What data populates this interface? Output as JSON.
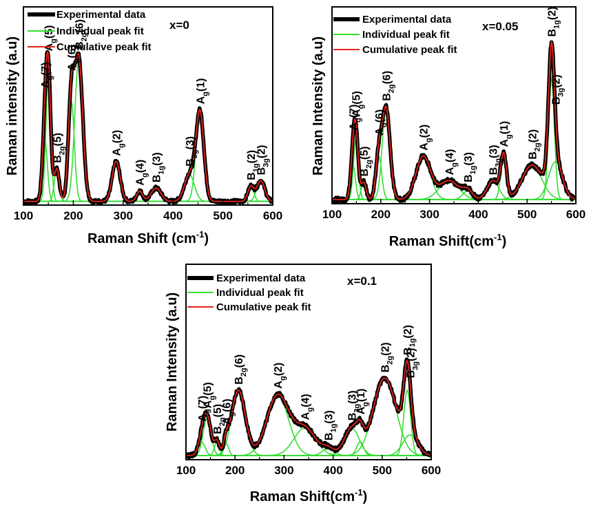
{
  "colors": {
    "experimental": "#000000",
    "individual": "#33dd33",
    "cumulative": "#e8221a"
  },
  "chart_data": [
    {
      "type": "line",
      "title": "x=0",
      "xlabel": "Raman Shift (cm",
      "xlabel_sup": "-1",
      "xlabel_end": ")",
      "ylabel": "Raman intensity (a.u)",
      "xlim": [
        100,
        600
      ],
      "xticks": [
        100,
        200,
        300,
        400,
        500,
        600
      ],
      "legend": [
        "Experimental data",
        "Individual peak fit",
        "Cumulative peak fit"
      ],
      "legend_position": "top-left",
      "baseline": 0.02,
      "peaks": [
        {
          "label": "Ag(7)",
          "center": 143,
          "height": 0.42,
          "width": 5
        },
        {
          "label": "Ag(5)",
          "center": 150,
          "height": 0.82,
          "width": 5
        },
        {
          "label": "B2g(5)",
          "center": 167,
          "height": 0.22,
          "width": 5
        },
        {
          "label": "Ag(6)",
          "center": 196,
          "height": 0.68,
          "width": 6
        },
        {
          "label": "B2g(6)",
          "center": 211,
          "height": 0.96,
          "width": 8
        },
        {
          "label": "Ag(2)",
          "center": 286,
          "height": 0.27,
          "width": 8
        },
        {
          "label": "Ag(4)",
          "center": 333,
          "height": 0.07,
          "width": 6
        },
        {
          "label": "B1g(3)",
          "center": 366,
          "height": 0.09,
          "width": 10
        },
        {
          "label": "B3g(3)",
          "center": 433,
          "height": 0.18,
          "width": 10
        },
        {
          "label": "Ag(1)",
          "center": 454,
          "height": 0.6,
          "width": 8
        },
        {
          "label": "B1g(2)",
          "center": 556,
          "height": 0.1,
          "width": 6
        },
        {
          "label": "B3g(2)",
          "center": 576,
          "height": 0.14,
          "width": 8
        }
      ]
    },
    {
      "type": "line",
      "title": "x=0.05",
      "xlabel": "Raman Shift(cm",
      "xlabel_sup": "-1",
      "xlabel_end": ")",
      "ylabel": "Raman Intensity (a.u)",
      "xlim": [
        100,
        600
      ],
      "xticks": [
        100,
        200,
        300,
        400,
        500,
        600
      ],
      "legend": [
        "Experimental data",
        "Individual peak fit",
        "Cumulative peak fit"
      ],
      "legend_position": "top-left",
      "baseline": 0.02,
      "peaks": [
        {
          "label": "Ag(7)",
          "center": 143,
          "height": 0.2,
          "width": 5
        },
        {
          "label": "Ag(5)",
          "center": 149,
          "height": 0.35,
          "width": 5
        },
        {
          "label": "B2g(5)",
          "center": 165,
          "height": 0.1,
          "width": 5
        },
        {
          "label": "Ag(6)",
          "center": 196,
          "height": 0.25,
          "width": 6
        },
        {
          "label": "B2g(6)",
          "center": 211,
          "height": 0.53,
          "width": 8
        },
        {
          "label": "Ag(2)",
          "center": 287,
          "height": 0.25,
          "width": 15
        },
        {
          "label": "Ag(4)",
          "center": 340,
          "height": 0.11,
          "width": 20
        },
        {
          "label": "B1g(3)",
          "center": 378,
          "height": 0.05,
          "width": 10
        },
        {
          "label": "B3g(3)",
          "center": 430,
          "height": 0.11,
          "width": 12
        },
        {
          "label": "Ag(1)",
          "center": 452,
          "height": 0.25,
          "width": 6
        },
        {
          "label": "B2g(2)",
          "center": 510,
          "height": 0.2,
          "width": 20
        },
        {
          "label": "B1g(2)",
          "center": 550,
          "height": 0.7,
          "width": 6
        },
        {
          "label": "B3g(2)",
          "center": 558,
          "height": 0.22,
          "width": 14
        }
      ]
    },
    {
      "type": "line",
      "title": "x=0.1",
      "xlabel": "Raman Shift(cm",
      "xlabel_sup": "-1",
      "xlabel_end": ")",
      "ylabel": "Raman Intensity (a.u)",
      "xlim": [
        100,
        600
      ],
      "xticks": [
        100,
        200,
        300,
        400,
        500,
        600
      ],
      "legend": [
        "Experimental data",
        "Individual peak fit",
        "Cumulative peak fit"
      ],
      "legend_position": "top-left",
      "baseline": 0.02,
      "peaks": [
        {
          "label": "Ag(7)",
          "center": 132,
          "height": 0.08,
          "width": 7
        },
        {
          "label": "Ag(5)",
          "center": 143,
          "height": 0.22,
          "width": 8
        },
        {
          "label": "B2g(5)",
          "center": 163,
          "height": 0.08,
          "width": 5
        },
        {
          "label": "Ag(6)",
          "center": 182,
          "height": 0.07,
          "width": 5
        },
        {
          "label": "B2g(6)",
          "center": 207,
          "height": 0.38,
          "width": 14
        },
        {
          "label": "Ag(2)",
          "center": 287,
          "height": 0.35,
          "width": 22
        },
        {
          "label": "Ag(4)",
          "center": 342,
          "height": 0.16,
          "width": 22
        },
        {
          "label": "B1g(3)",
          "center": 390,
          "height": 0.04,
          "width": 12
        },
        {
          "label": "B3g(3)",
          "center": 438,
          "height": 0.16,
          "width": 15
        },
        {
          "label": "Ag(1)",
          "center": 455,
          "height": 0.08,
          "width": 7
        },
        {
          "label": "B2g(2)",
          "center": 505,
          "height": 0.45,
          "width": 23
        },
        {
          "label": "B1g(2)",
          "center": 551,
          "height": 0.38,
          "width": 7
        },
        {
          "label": "B3g(2)",
          "center": 557,
          "height": 0.12,
          "width": 15
        }
      ]
    }
  ]
}
